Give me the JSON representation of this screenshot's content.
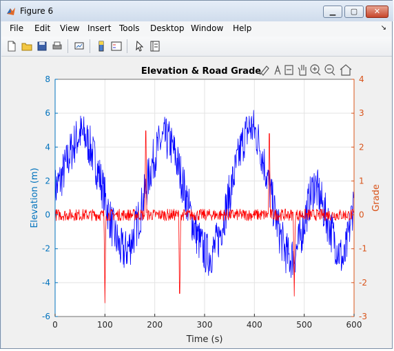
{
  "window": {
    "title": "Figure 6"
  },
  "menu": [
    "File",
    "Edit",
    "View",
    "Insert",
    "Tools",
    "Desktop",
    "Window",
    "Help"
  ],
  "toolbar_icons": [
    "new-figure-icon",
    "open-file-icon",
    "save-icon",
    "print-icon",
    "link-plot-icon",
    "insert-colorbar-icon",
    "insert-legend-icon",
    "edit-plot-icon",
    "property-inspector-icon"
  ],
  "axes_toolbar_icons": [
    "brush-icon",
    "data-tips-icon",
    "export-icon",
    "pan-icon",
    "zoom-in-icon",
    "zoom-out-icon",
    "home-icon"
  ],
  "colors": {
    "left_axis": "#0072BD",
    "right_axis": "#D95319",
    "elevation_series": "#0000FF",
    "grade_series": "#FF0000"
  },
  "chart_data": {
    "type": "line",
    "title": "Elevation & Road Grade",
    "xlabel": "Time (s)",
    "ylabel_left": "Elevation (m)",
    "ylabel_right": "Grade",
    "xlim": [
      0,
      600
    ],
    "ylim_left": [
      -6,
      8
    ],
    "ylim_right": [
      -3,
      4
    ],
    "xticks": [
      0,
      100,
      200,
      300,
      400,
      500,
      600
    ],
    "yticks_left": [
      -6,
      -4,
      -2,
      0,
      2,
      4,
      6,
      8
    ],
    "yticks_right": [
      -3,
      -2,
      -1,
      0,
      1,
      2,
      3,
      4
    ],
    "grid": true,
    "series": [
      {
        "axis": "left",
        "x": [
          0,
          10,
          20,
          30,
          40,
          50,
          60,
          70,
          80,
          90,
          100,
          110,
          120,
          130,
          140,
          150,
          160,
          170,
          180,
          190,
          200,
          210,
          220,
          230,
          240,
          250,
          260,
          270,
          280,
          290,
          300,
          310,
          320,
          330,
          340,
          350,
          360,
          370,
          380,
          390,
          400,
          410,
          420,
          430,
          440,
          450,
          460,
          470,
          480,
          490,
          500,
          510,
          520,
          530,
          540,
          550,
          560,
          570,
          580,
          590,
          600
        ],
        "values": [
          1.5,
          2.0,
          2.8,
          3.6,
          4.3,
          4.8,
          4.6,
          4.0,
          3.2,
          2.2,
          1.0,
          -0.2,
          -1.2,
          -2.0,
          -2.2,
          -1.8,
          -1.0,
          0.0,
          1.2,
          2.5,
          3.5,
          4.2,
          4.5,
          4.3,
          3.6,
          2.6,
          1.4,
          0.2,
          -0.8,
          -1.6,
          -2.2,
          -2.4,
          -2.0,
          -1.2,
          0.0,
          1.2,
          2.4,
          3.6,
          4.6,
          5.2,
          5.0,
          4.2,
          3.0,
          1.6,
          0.2,
          -1.0,
          -2.0,
          -2.6,
          -2.4,
          -1.6,
          -0.4,
          0.8,
          1.8,
          1.2,
          0.2,
          -0.6,
          -1.4,
          -2.2,
          -2.8,
          -1.0,
          1.0
        ]
      },
      {
        "axis": "right",
        "x": [
          0,
          50,
          98,
          100,
          102,
          150,
          180,
          182,
          184,
          200,
          248,
          250,
          252,
          300,
          350,
          380,
          428,
          430,
          432,
          470,
          478,
          480,
          482,
          530,
          600
        ],
        "values": [
          0,
          0,
          0,
          -2.6,
          0,
          0,
          0,
          3.1,
          0,
          0,
          0,
          -2.9,
          0,
          0,
          0,
          0,
          0,
          3.0,
          0,
          0,
          0,
          -2.4,
          0,
          0,
          0
        ]
      }
    ]
  }
}
